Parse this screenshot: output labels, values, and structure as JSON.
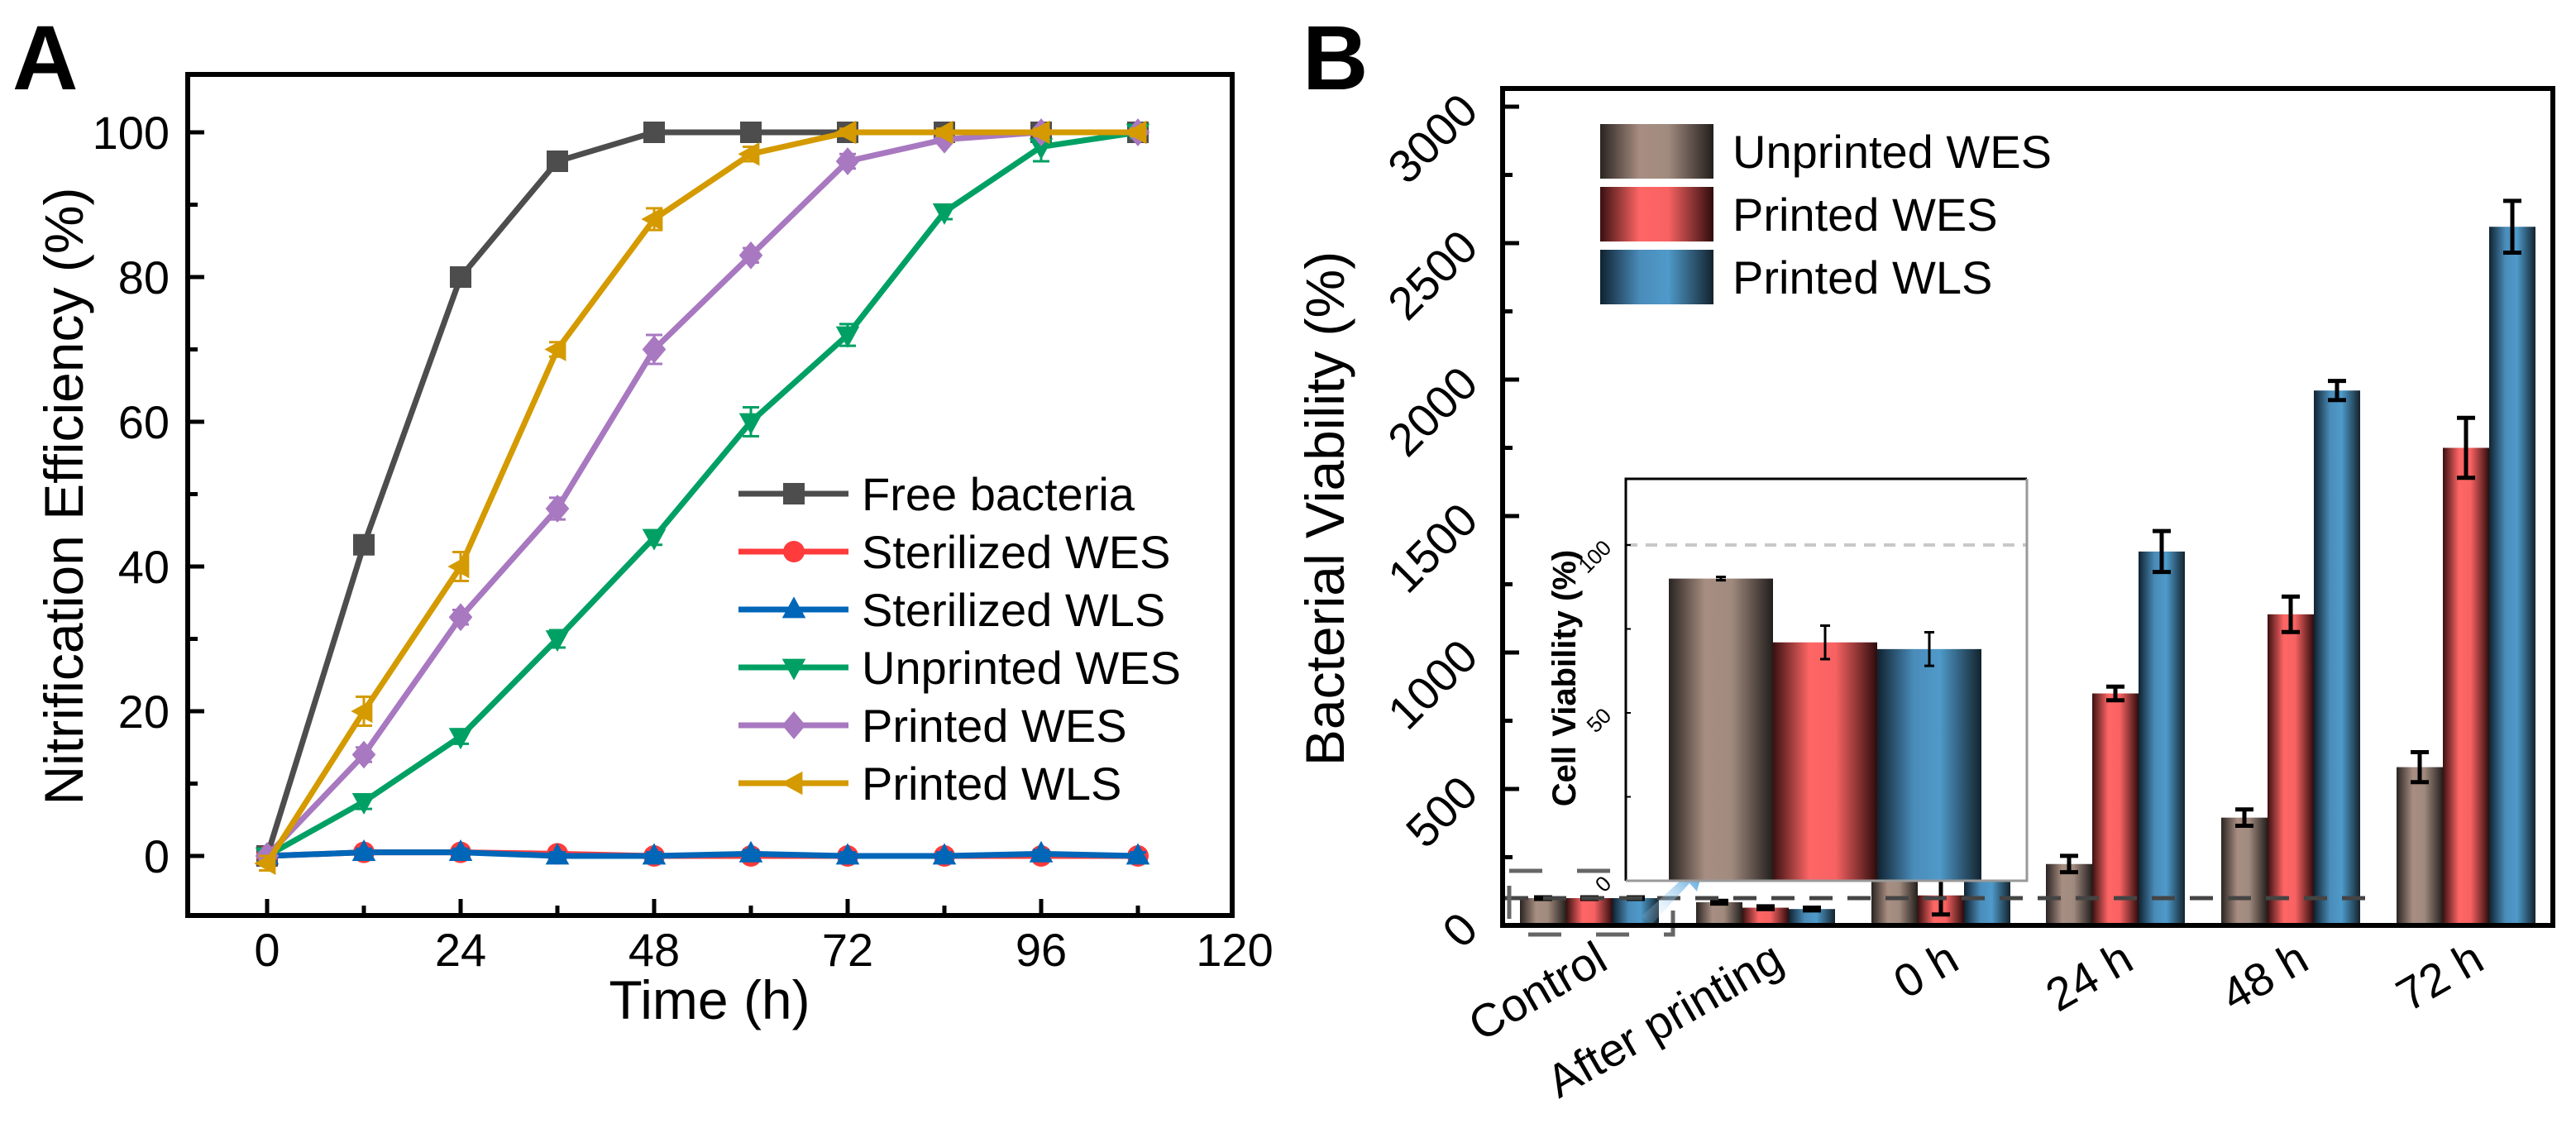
{
  "chart_data": [
    {
      "type": "line",
      "panel_label": "A",
      "xlabel": "Time (h)",
      "ylabel": "Nitrification Efficiency (%)",
      "xlim": [
        -12,
        120
      ],
      "ylim": [
        -12,
        108
      ],
      "xticks": [
        0,
        24,
        48,
        72,
        96,
        120
      ],
      "yticks": [
        0,
        20,
        40,
        60,
        80,
        100
      ],
      "grid": false,
      "legend_position": "lower-right",
      "x": [
        0,
        12,
        24,
        36,
        48,
        60,
        72,
        84,
        96,
        108
      ],
      "series": [
        {
          "name": "Free bacteria",
          "color": "#4d4d4d",
          "marker": "square",
          "values": [
            0,
            43,
            80,
            96,
            100,
            100,
            100,
            100,
            100,
            100
          ],
          "errors": [
            0.5,
            1,
            1,
            0.5,
            0.5,
            0.5,
            0.5,
            0.3,
            0.3,
            0.3
          ]
        },
        {
          "name": "Sterilized WES",
          "color": "#ff3b3b",
          "marker": "circle",
          "values": [
            0,
            0.5,
            0.5,
            0.3,
            0,
            0,
            0,
            0,
            0,
            0
          ],
          "errors": [
            0.5,
            0.5,
            0.5,
            0.5,
            0.5,
            0.5,
            0.5,
            0.5,
            0.5,
            0.5
          ]
        },
        {
          "name": "Sterilized WLS",
          "color": "#0066b8",
          "marker": "triangle-up",
          "values": [
            0,
            0.5,
            0.5,
            0,
            0,
            0.3,
            0,
            0,
            0.3,
            0
          ],
          "errors": [
            0.5,
            0.5,
            0.5,
            0.5,
            0.5,
            0.5,
            0.5,
            0.5,
            0.5,
            0.5
          ]
        },
        {
          "name": "Unprinted WES",
          "color": "#00a064",
          "marker": "triangle-down",
          "values": [
            0,
            7.5,
            16.5,
            30,
            44,
            60,
            72,
            89,
            98,
            100
          ],
          "errors": [
            0.5,
            1,
            1,
            1.2,
            1,
            2,
            1.5,
            1,
            2,
            0.8
          ]
        },
        {
          "name": "Printed WES",
          "color": "#a878c0",
          "marker": "diamond",
          "values": [
            0,
            14,
            33,
            48,
            70,
            83,
            96,
            99,
            100,
            100
          ],
          "errors": [
            0.5,
            1,
            1,
            1.5,
            2,
            1,
            1,
            0.5,
            0.5,
            0.5
          ]
        },
        {
          "name": "Printed WLS",
          "color": "#d49a00",
          "marker": "triangle-left",
          "values": [
            -1,
            20,
            40,
            70,
            88,
            97,
            100,
            100,
            100,
            100
          ],
          "errors": [
            1,
            2,
            2,
            1,
            1.5,
            1,
            0.5,
            0.5,
            0.5,
            0.5
          ]
        }
      ]
    },
    {
      "type": "bar",
      "panel_label": "B",
      "xlabel": "",
      "ylabel": "Bacterial Viability (%)",
      "ylim": [
        0,
        3000
      ],
      "yticks": [
        0,
        500,
        1000,
        1500,
        2000,
        2500,
        3000
      ],
      "reference_line": 100,
      "legend_position": "top-left",
      "categories": [
        "Control",
        "After printing",
        "0 h",
        "24 h",
        "48 h",
        "72 h"
      ],
      "series": [
        {
          "name": "Unprinted WES",
          "color": "#a88e82",
          "values": [
            100,
            85,
            205,
            225,
            395,
            580
          ],
          "errors": [
            3,
            5,
            10,
            30,
            30,
            55
          ]
        },
        {
          "name": "Printed WES",
          "color": "#ff6666",
          "values": [
            100,
            65,
            110,
            850,
            1140,
            1750
          ],
          "errors": [
            3,
            5,
            70,
            25,
            65,
            110
          ]
        },
        {
          "name": "Printed WLS",
          "color": "#4a96c8",
          "values": [
            100,
            60,
            280,
            1370,
            1960,
            2560
          ],
          "errors": [
            3,
            5,
            30,
            75,
            35,
            95
          ]
        }
      ],
      "inset": {
        "type": "bar",
        "ylabel": "Cell Viability (%)",
        "ylim": [
          0,
          120
        ],
        "yticks": [
          0,
          50,
          100
        ],
        "reference_line": 100,
        "series_names": [
          "Unprinted WES",
          "Printed WES",
          "Printed WLS"
        ],
        "values": [
          90,
          71,
          69
        ],
        "errors": [
          0.5,
          5,
          5
        ]
      }
    }
  ]
}
